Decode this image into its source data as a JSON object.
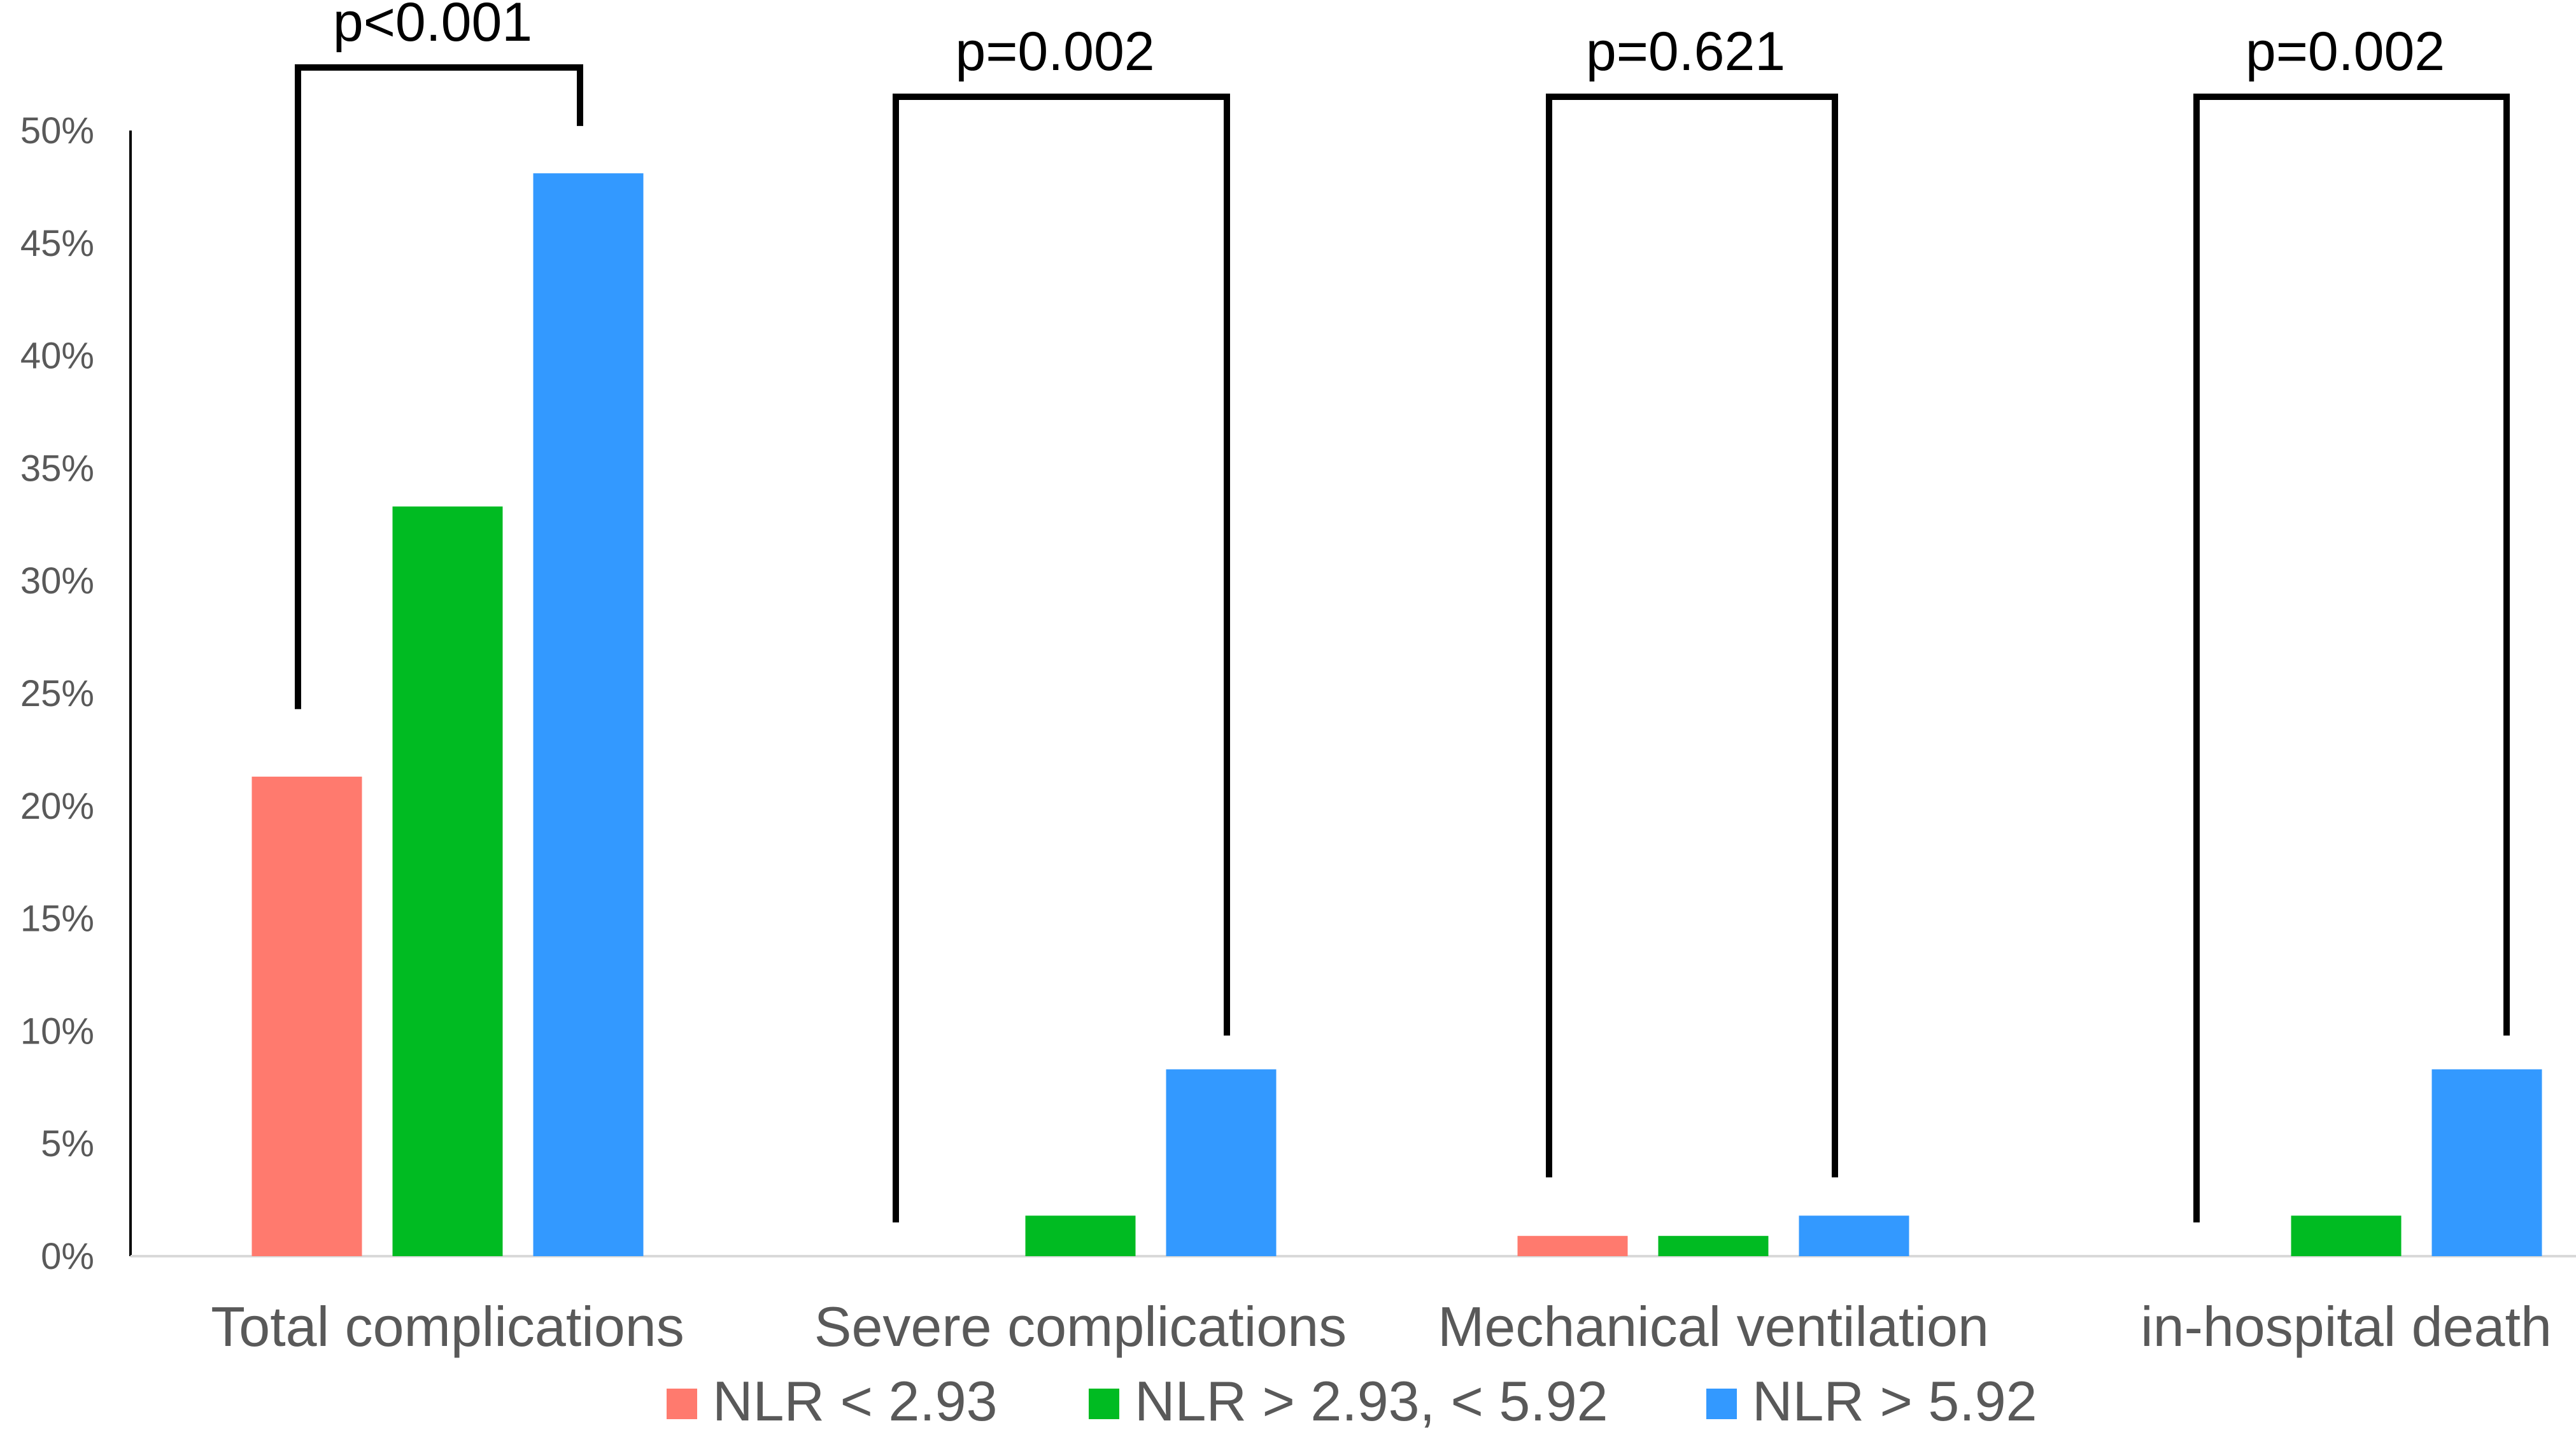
{
  "chart_data": {
    "type": "bar",
    "title": "",
    "xlabel": "",
    "ylabel": "",
    "ylim": [
      0,
      50
    ],
    "yticks": [
      0,
      5,
      10,
      15,
      20,
      25,
      30,
      35,
      40,
      45,
      50
    ],
    "ytick_labels": [
      "0%",
      "5%",
      "10%",
      "15%",
      "20%",
      "25%",
      "30%",
      "35%",
      "40%",
      "45%",
      "50%"
    ],
    "grid": false,
    "legend_position": "bottom",
    "categories": [
      "Total complications",
      "Severe complications",
      "Mechanical ventilation",
      "in-hospital death"
    ],
    "series": [
      {
        "name": "NLR < 2.93",
        "color": "#ff7a6e",
        "values": [
          21.3,
          0,
          0.9,
          0
        ]
      },
      {
        "name": "NLR > 2.93, < 5.92",
        "color": "#00bb22",
        "values": [
          33.3,
          1.8,
          0.9,
          1.8
        ]
      },
      {
        "name": "NLR > 5.92",
        "color": "#3399ff",
        "values": [
          48.1,
          8.3,
          1.8,
          8.3
        ]
      }
    ],
    "annotations": [
      {
        "category": "Total complications",
        "text": "p<0.001",
        "left_level": 24.3,
        "right_level": 50.2,
        "top_level": 52.8
      },
      {
        "category": "Severe complications",
        "text": "p=0.002",
        "left_level": 1.5,
        "right_level": 9.8,
        "top_level": 51.5
      },
      {
        "category": "Mechanical ventilation",
        "text": "p=0.621",
        "left_level": 3.5,
        "right_level": 3.5,
        "top_level": 51.5
      },
      {
        "category": "in-hospital death",
        "text": "p=0.002",
        "left_level": 1.5,
        "right_level": 9.8,
        "top_level": 51.5
      }
    ]
  }
}
